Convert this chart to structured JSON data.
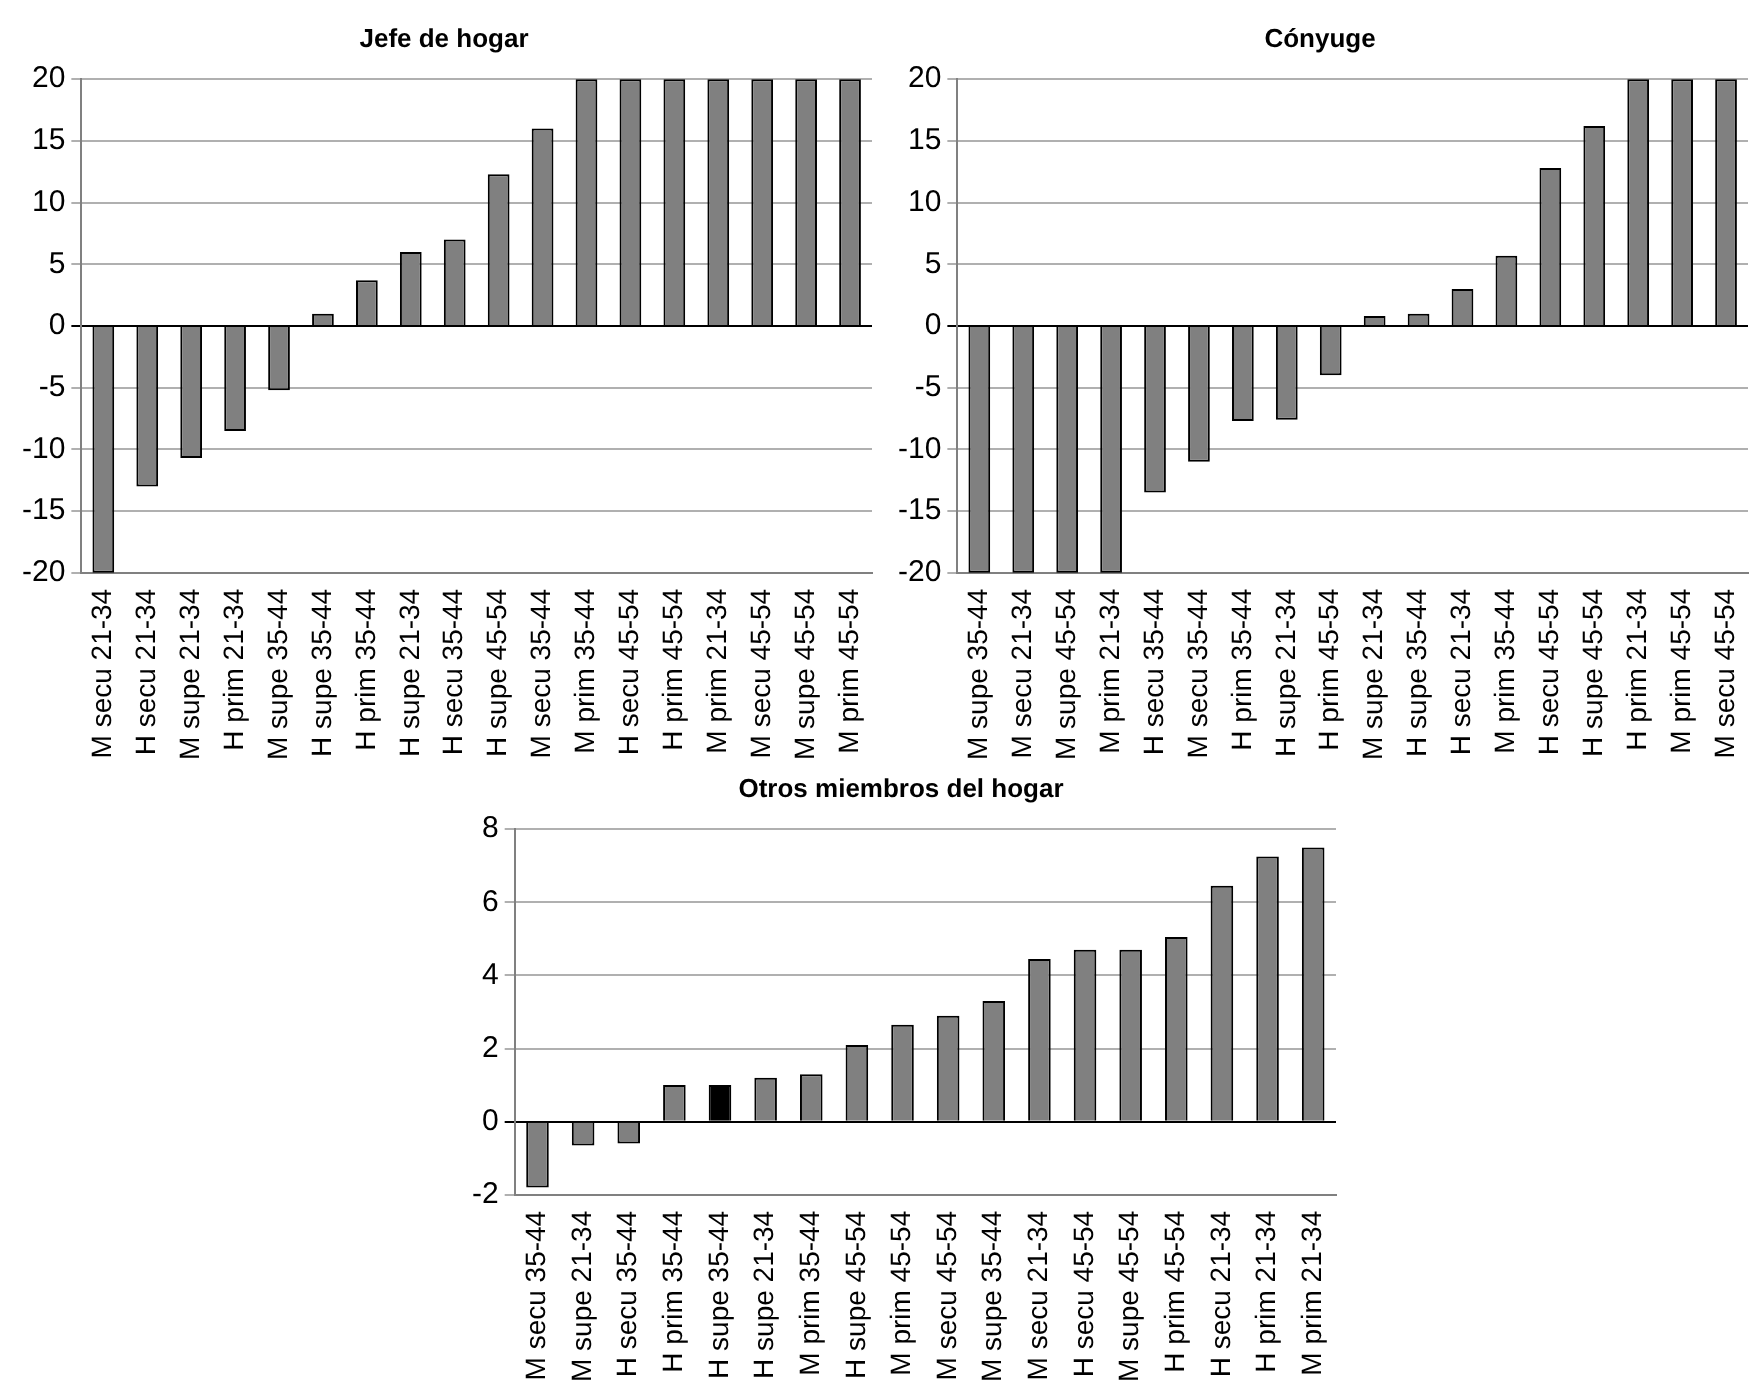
{
  "chart_data": [
    {
      "type": "bar",
      "title": "Jefe de hogar",
      "categories": [
        "M secu 21-34",
        "H secu 21-34",
        "M supe 21-34",
        "H prim 21-34",
        "M supe 35-44",
        "H supe 35-44",
        "H prim 35-44",
        "H supe 21-34",
        "H secu 35-44",
        "H supe 45-54",
        "M secu 35-44",
        "M prim 35-44",
        "H secu 45-54",
        "H prim 45-54",
        "M prim 21-34",
        "M secu 45-54",
        "M supe 45-54",
        "M prim 45-54"
      ],
      "series": [
        {
          "color": "#808080",
          "values": [
            -20,
            -13,
            -10.7,
            -8.5,
            -5.2,
            1,
            3.7,
            6,
            7,
            12.3,
            16,
            20,
            20,
            20,
            20,
            20,
            20,
            20
          ]
        }
      ],
      "ylim": [
        -20,
        20
      ],
      "yticks": [
        -20,
        -15,
        -10,
        -5,
        0,
        5,
        10,
        15,
        20
      ],
      "grid": "y"
    },
    {
      "type": "bar",
      "title": "Cónyuge",
      "categories": [
        "M supe 35-44",
        "M secu 21-34",
        "M supe 45-54",
        "M prim 21-34",
        "H secu 35-44",
        "M secu 35-44",
        "H prim 35-44",
        "H supe 21-34",
        "H prim 45-54",
        "M supe 21-34",
        "H supe 35-44",
        "H secu 21-34",
        "M prim 35-44",
        "H secu 45-54",
        "H supe 45-54",
        "H prim 21-34",
        "M prim 45-54",
        "M secu 45-54"
      ],
      "series": [
        {
          "color": "#808080",
          "values": [
            -20,
            -20,
            -20,
            -20,
            -13.5,
            -11,
            -7.7,
            -7.6,
            -4,
            0.8,
            1,
            3,
            5.7,
            12.8,
            16.2,
            20,
            20,
            20
          ]
        }
      ],
      "ylim": [
        -20,
        20
      ],
      "yticks": [
        -20,
        -15,
        -10,
        -5,
        0,
        5,
        10,
        15,
        20
      ],
      "grid": "y"
    },
    {
      "type": "bar",
      "title": "Otros miembros del hogar",
      "categories": [
        "M secu 35-44",
        "M supe 21-34",
        "H secu 35-44",
        "H prim 35-44",
        "H supe 35-44",
        "H supe 21-34",
        "M prim 35-44",
        "H supe 45-54",
        "M prim 45-54",
        "M secu 45-54",
        "M supe 35-44",
        "M secu 21-34",
        "H secu 45-54",
        "M supe 45-54",
        "H prim 45-54",
        "H secu 21-34",
        "H prim 21-34",
        "M prim 21-34"
      ],
      "series": [
        {
          "colors": [
            "#808080",
            "#808080",
            "#808080",
            "#808080",
            "#000000",
            "#808080",
            "#808080",
            "#808080",
            "#808080",
            "#808080",
            "#808080",
            "#808080",
            "#808080",
            "#808080",
            "#808080",
            "#808080",
            "#808080",
            "#808080"
          ],
          "values": [
            -1.8,
            -0.65,
            -0.6,
            1,
            1,
            1.2,
            1.3,
            2.1,
            2.65,
            2.9,
            3.3,
            4.45,
            4.7,
            4.7,
            5.05,
            6.45,
            7.25,
            7.5
          ]
        }
      ],
      "ylim": [
        -2,
        8
      ],
      "yticks": [
        -2,
        0,
        2,
        4,
        6,
        8
      ],
      "grid": "y"
    }
  ]
}
